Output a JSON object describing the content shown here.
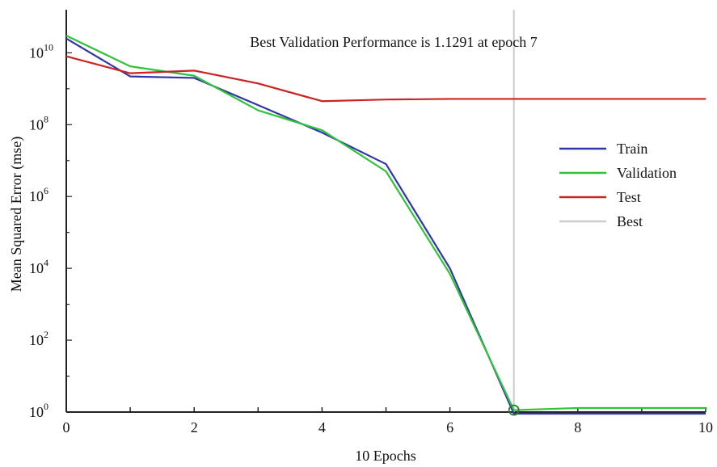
{
  "chart_data": {
    "type": "line",
    "title": "Best Validation Performance is 1.1291 at epoch 7",
    "xlabel": "10 Epochs",
    "ylabel": "Mean Squared Error (mse)",
    "x": [
      0,
      1,
      2,
      3,
      4,
      5,
      6,
      7,
      8,
      9,
      10
    ],
    "xlim": [
      0,
      10
    ],
    "ylim_log10": [
      0,
      11.2
    ],
    "yscale": "log",
    "x_ticks": [
      "0",
      "2",
      "4",
      "6",
      "8",
      "10"
    ],
    "y_ticks": [
      {
        "base": "10",
        "exp": "0"
      },
      {
        "base": "10",
        "exp": "2"
      },
      {
        "base": "10",
        "exp": "4"
      },
      {
        "base": "10",
        "exp": "6"
      },
      {
        "base": "10",
        "exp": "8"
      },
      {
        "base": "10",
        "exp": "10"
      }
    ],
    "series": [
      {
        "name": "Train",
        "color": "#3333aa",
        "values": [
          25000000000,
          2200000000,
          2000000000,
          350000000,
          60000000,
          8000000,
          10000,
          0.9,
          0.9,
          0.9,
          0.9
        ]
      },
      {
        "name": "Validation",
        "color": "#2ec43a",
        "values": [
          30000000000,
          4200000000,
          2300000000,
          250000000,
          70000000,
          5000000,
          7000,
          1.1291,
          1.3,
          1.3,
          1.3
        ]
      },
      {
        "name": "Test",
        "color": "#cc2222",
        "values": [
          8000000000,
          2700000000,
          3200000000,
          1400000000,
          450000000,
          500000000,
          520000000,
          520000000,
          520000000,
          520000000,
          520000000
        ]
      }
    ],
    "best": {
      "name": "Best",
      "epoch": 7,
      "value": 1.1291,
      "color": "#cccccc"
    },
    "grid": false,
    "legend_position": "right"
  }
}
